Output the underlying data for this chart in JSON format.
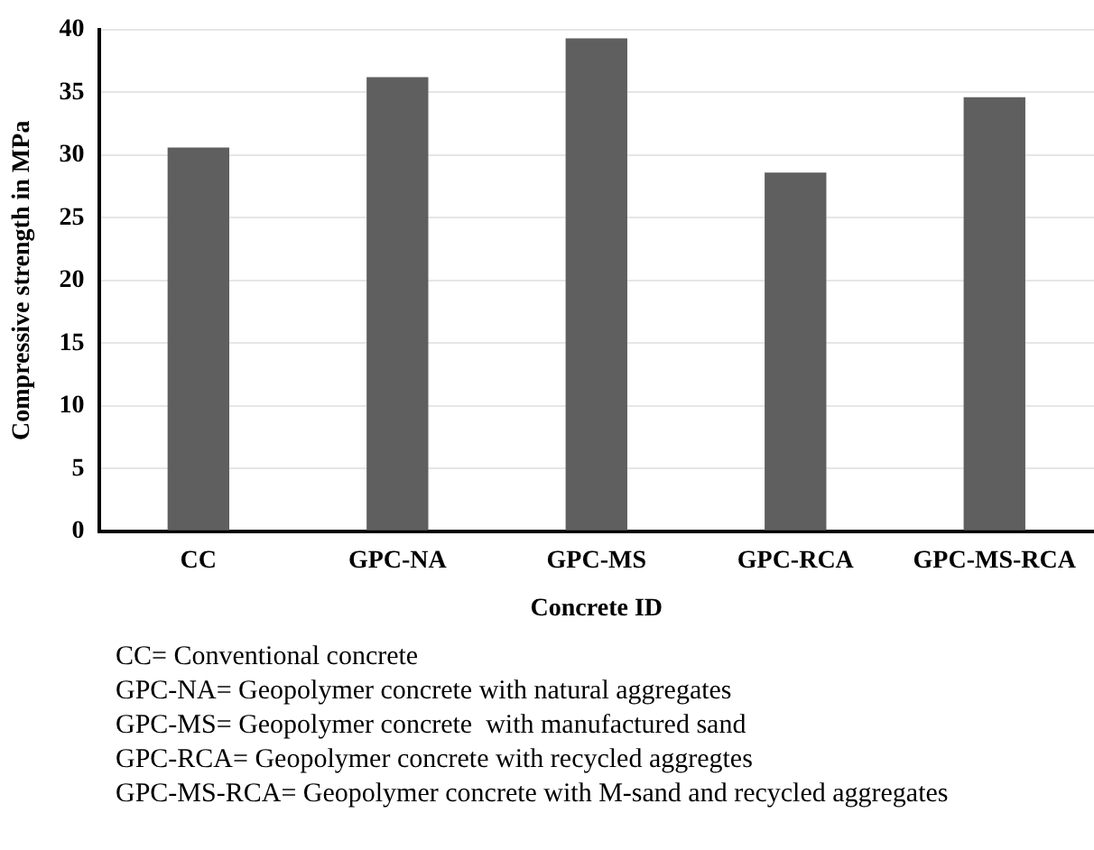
{
  "chart_data": {
    "type": "bar",
    "xlabel": "Concrete ID",
    "ylabel": "Compressive strength in MPa",
    "categories": [
      "CC",
      "GPC-NA",
      "GPC-MS",
      "GPC-RCA",
      "GPC-MS-RCA"
    ],
    "values": [
      30.6,
      36.2,
      39.3,
      28.6,
      34.6
    ],
    "color": "#5f5f5f",
    "ylim": [
      0,
      40
    ],
    "yticks": [
      0,
      5,
      10,
      15,
      20,
      25,
      30,
      35,
      40
    ],
    "grid": "y",
    "legend": false,
    "annotations": [
      "CC= Conventional concrete",
      "GPC-NA= Geopolymer concrete with natural aggregates",
      "GPC-MS= Geopolymer concrete  with manufactured sand",
      "GPC-RCA= Geopolymer concrete with recycled aggregtes",
      "GPC-MS-RCA= Geopolymer concrete with M-sand and recycled aggregates"
    ]
  }
}
